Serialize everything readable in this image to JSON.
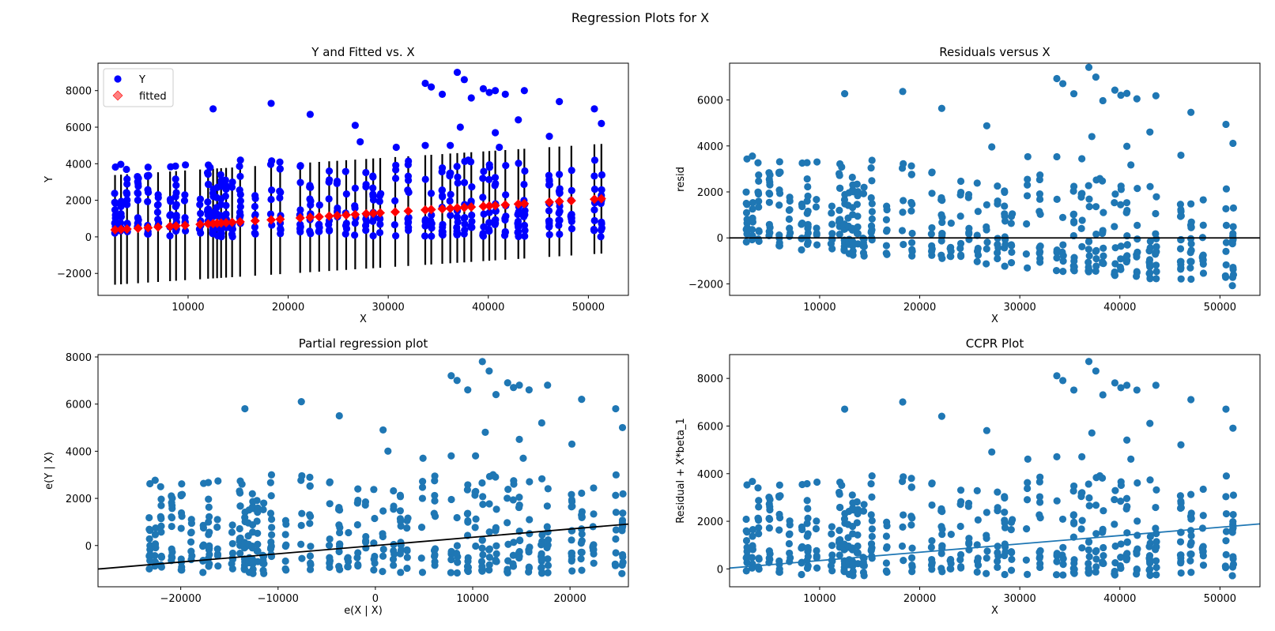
{
  "suptitle": "Regression Plots for X",
  "colors": {
    "y_points": "#0000ff",
    "fitted": "#ff0000",
    "fitted_legend": "#ff8080",
    "scatter": "#1f77b4",
    "errorbar": "#000000",
    "axes": "#000000"
  },
  "chart_data": [
    {
      "type": "scatter",
      "title": "Y and Fitted vs. X",
      "xlabel": "X",
      "ylabel": "Y",
      "xlim": [
        1000,
        54000
      ],
      "ylim": [
        -3200,
        9500
      ],
      "xticks": [
        10000,
        20000,
        30000,
        40000,
        50000
      ],
      "yticks": [
        -2000,
        0,
        2000,
        4000,
        6000,
        8000
      ],
      "legend": {
        "position": "top-left",
        "entries": [
          "Y",
          "fitted"
        ]
      },
      "intercept": 290,
      "slope": 0.035,
      "errorbar_halfwidth": 3000,
      "x_groups": [
        2700,
        3300,
        3900,
        5000,
        6000,
        7000,
        8200,
        8800,
        9700,
        11200,
        12000,
        12500,
        12900,
        13300,
        13800,
        14400,
        15200,
        16700,
        18300,
        19200,
        21200,
        22200,
        23100,
        24100,
        24900,
        25800,
        26700,
        27800,
        28500,
        29200,
        30700,
        32000,
        33700,
        34300,
        35400,
        36200,
        36900,
        37600,
        38300,
        39500,
        40100,
        40700,
        41700,
        43000,
        43600,
        46100,
        47100,
        48300,
        50600,
        51300
      ],
      "high_points": [
        [
          12500,
          7000
        ],
        [
          18300,
          7300
        ],
        [
          22200,
          6700
        ],
        [
          26700,
          6100
        ],
        [
          27200,
          5200
        ],
        [
          30800,
          4900
        ],
        [
          33700,
          8400
        ],
        [
          34300,
          8200
        ],
        [
          35400,
          7800
        ],
        [
          36900,
          9000
        ],
        [
          37600,
          8600
        ],
        [
          38300,
          7600
        ],
        [
          39500,
          8100
        ],
        [
          40100,
          7900
        ],
        [
          40700,
          8000
        ],
        [
          41700,
          7800
        ],
        [
          43000,
          6400
        ],
        [
          43600,
          8000
        ],
        [
          46100,
          5500
        ],
        [
          47100,
          7400
        ],
        [
          50600,
          7000
        ],
        [
          51300,
          6200
        ],
        [
          36200,
          5000
        ],
        [
          37200,
          6000
        ],
        [
          40700,
          5700
        ],
        [
          41100,
          4900
        ],
        [
          12200,
          3800
        ],
        [
          33700,
          5000
        ],
        [
          38000,
          4200
        ]
      ]
    },
    {
      "type": "scatter",
      "title": "Residuals versus X",
      "xlabel": "X",
      "ylabel": "resid",
      "xlim": [
        1000,
        54000
      ],
      "ylim": [
        -2500,
        7600
      ],
      "xticks": [
        10000,
        20000,
        30000,
        40000,
        50000
      ],
      "yticks": [
        -2000,
        0,
        2000,
        4000,
        6000
      ],
      "hline": 0
    },
    {
      "type": "scatter",
      "title": "Partial regression plot",
      "xlabel": "e(X | X)",
      "ylabel": "e(Y | X)",
      "xlim": [
        -28500,
        26000
      ],
      "ylim": [
        -1750,
        8100
      ],
      "xticks": [
        -20000,
        -10000,
        0,
        10000,
        20000
      ],
      "yticks": [
        0,
        2000,
        4000,
        6000,
        8000
      ],
      "fit_line": {
        "slope": 0.035,
        "intercept": 0
      }
    },
    {
      "type": "scatter",
      "title": "CCPR Plot",
      "xlabel": "X",
      "ylabel": "Residual + X*beta_1",
      "xlim": [
        1000,
        54000
      ],
      "ylim": [
        -750,
        9000
      ],
      "xticks": [
        10000,
        20000,
        30000,
        40000,
        50000
      ],
      "yticks": [
        0,
        2000,
        4000,
        6000,
        8000
      ],
      "fit_line": {
        "slope": 0.035,
        "intercept": 0
      }
    }
  ]
}
